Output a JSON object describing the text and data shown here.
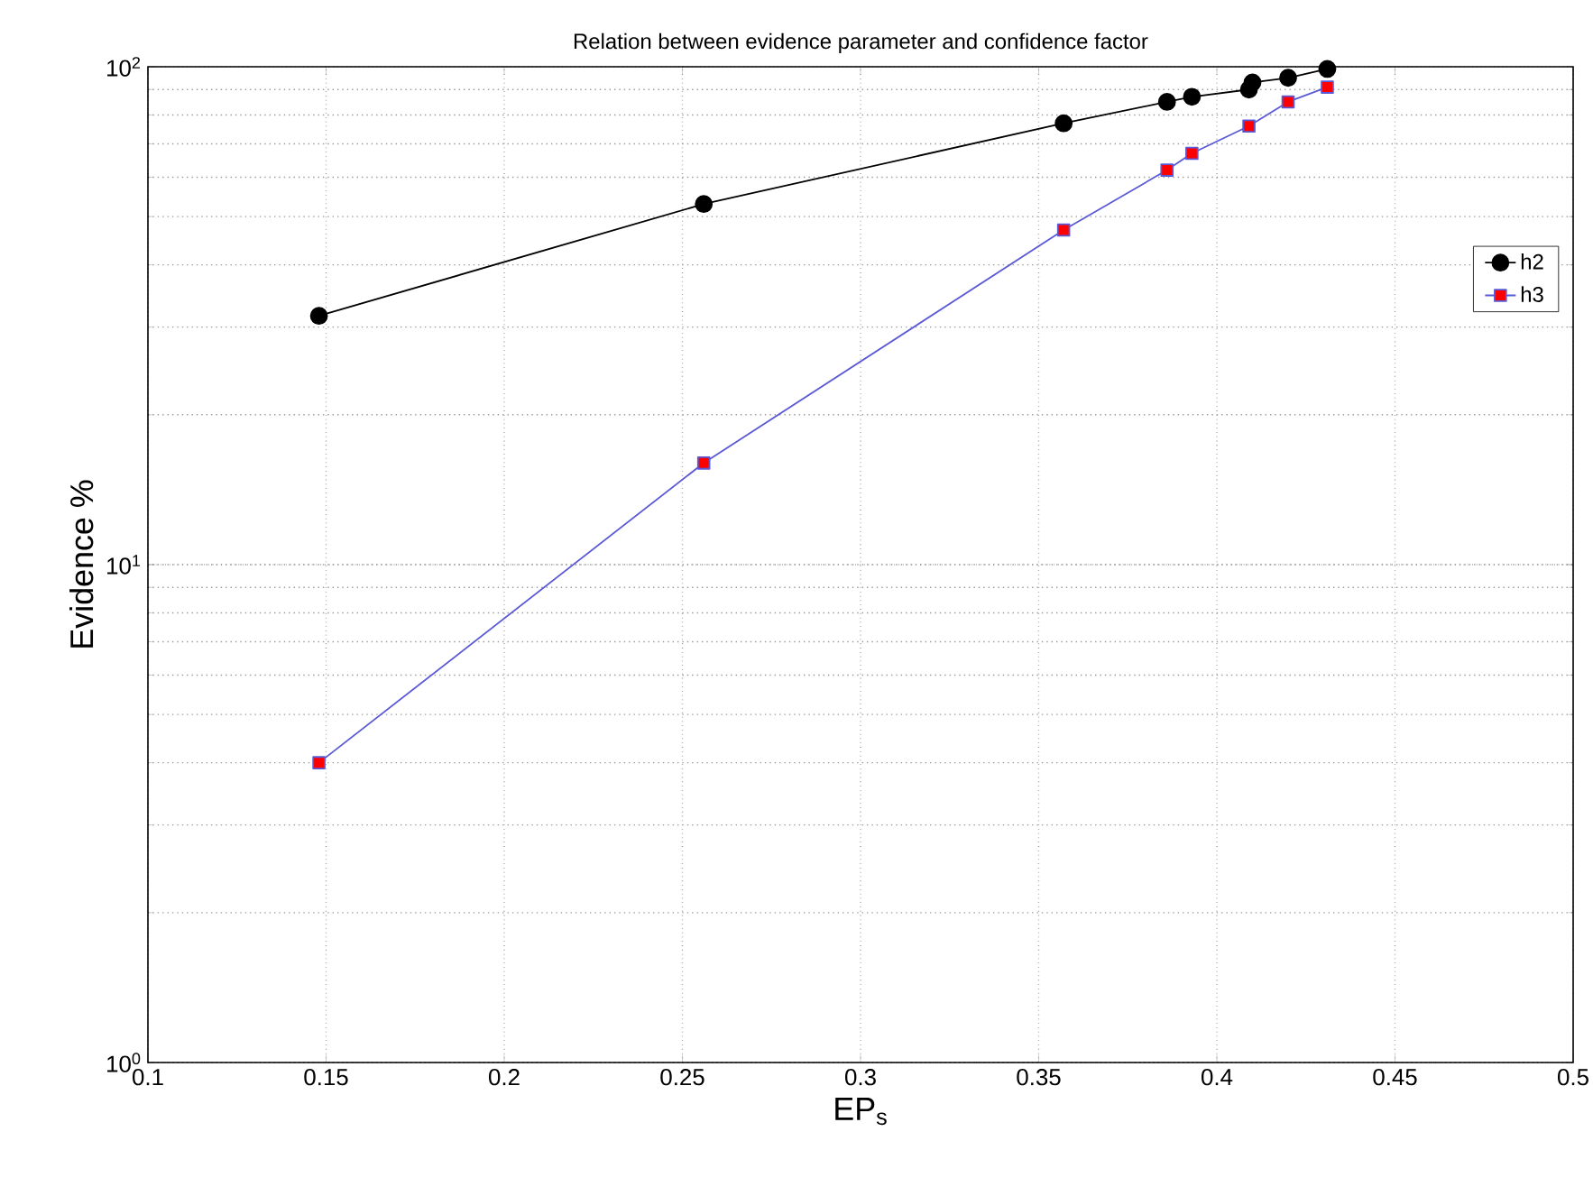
{
  "chart_data": {
    "type": "line",
    "title": "Relation between evidence parameter and confidence factor",
    "xlabel": "EP$_{s}$",
    "ylabel": "Evidence %",
    "log": "y",
    "grid": true,
    "legend": "top right",
    "line_style": "solid",
    "xlim": [
      0.1,
      0.5
    ],
    "xticks": [
      0.1,
      0.15,
      0.2,
      0.25,
      0.3,
      0.35,
      0.4,
      0.45,
      0.5
    ],
    "ylim": [
      1,
      100
    ],
    "yticks": [
      {
        "value": 1,
        "label": "10$^{0}$"
      },
      {
        "value": 10,
        "label": "10$^{1}$"
      },
      {
        "value": 100,
        "label": "10$^{2}$"
      }
    ],
    "series": [
      {
        "name": "h2",
        "color": "#000000",
        "marker": "circle",
        "x": [
          0.148,
          0.256,
          0.357,
          0.386,
          0.393,
          0.409,
          0.41,
          0.42,
          0.431
        ],
        "values": [
          31.6,
          53,
          77,
          85,
          87,
          90,
          93,
          95,
          99
        ]
      },
      {
        "name": "h3",
        "color": "#5a5ad6",
        "marker": "square",
        "x": [
          0.148,
          0.256,
          0.357,
          0.386,
          0.393,
          0.409,
          0.42,
          0.431
        ],
        "values": [
          4,
          16,
          47,
          62,
          67,
          76,
          85,
          91
        ]
      }
    ]
  }
}
